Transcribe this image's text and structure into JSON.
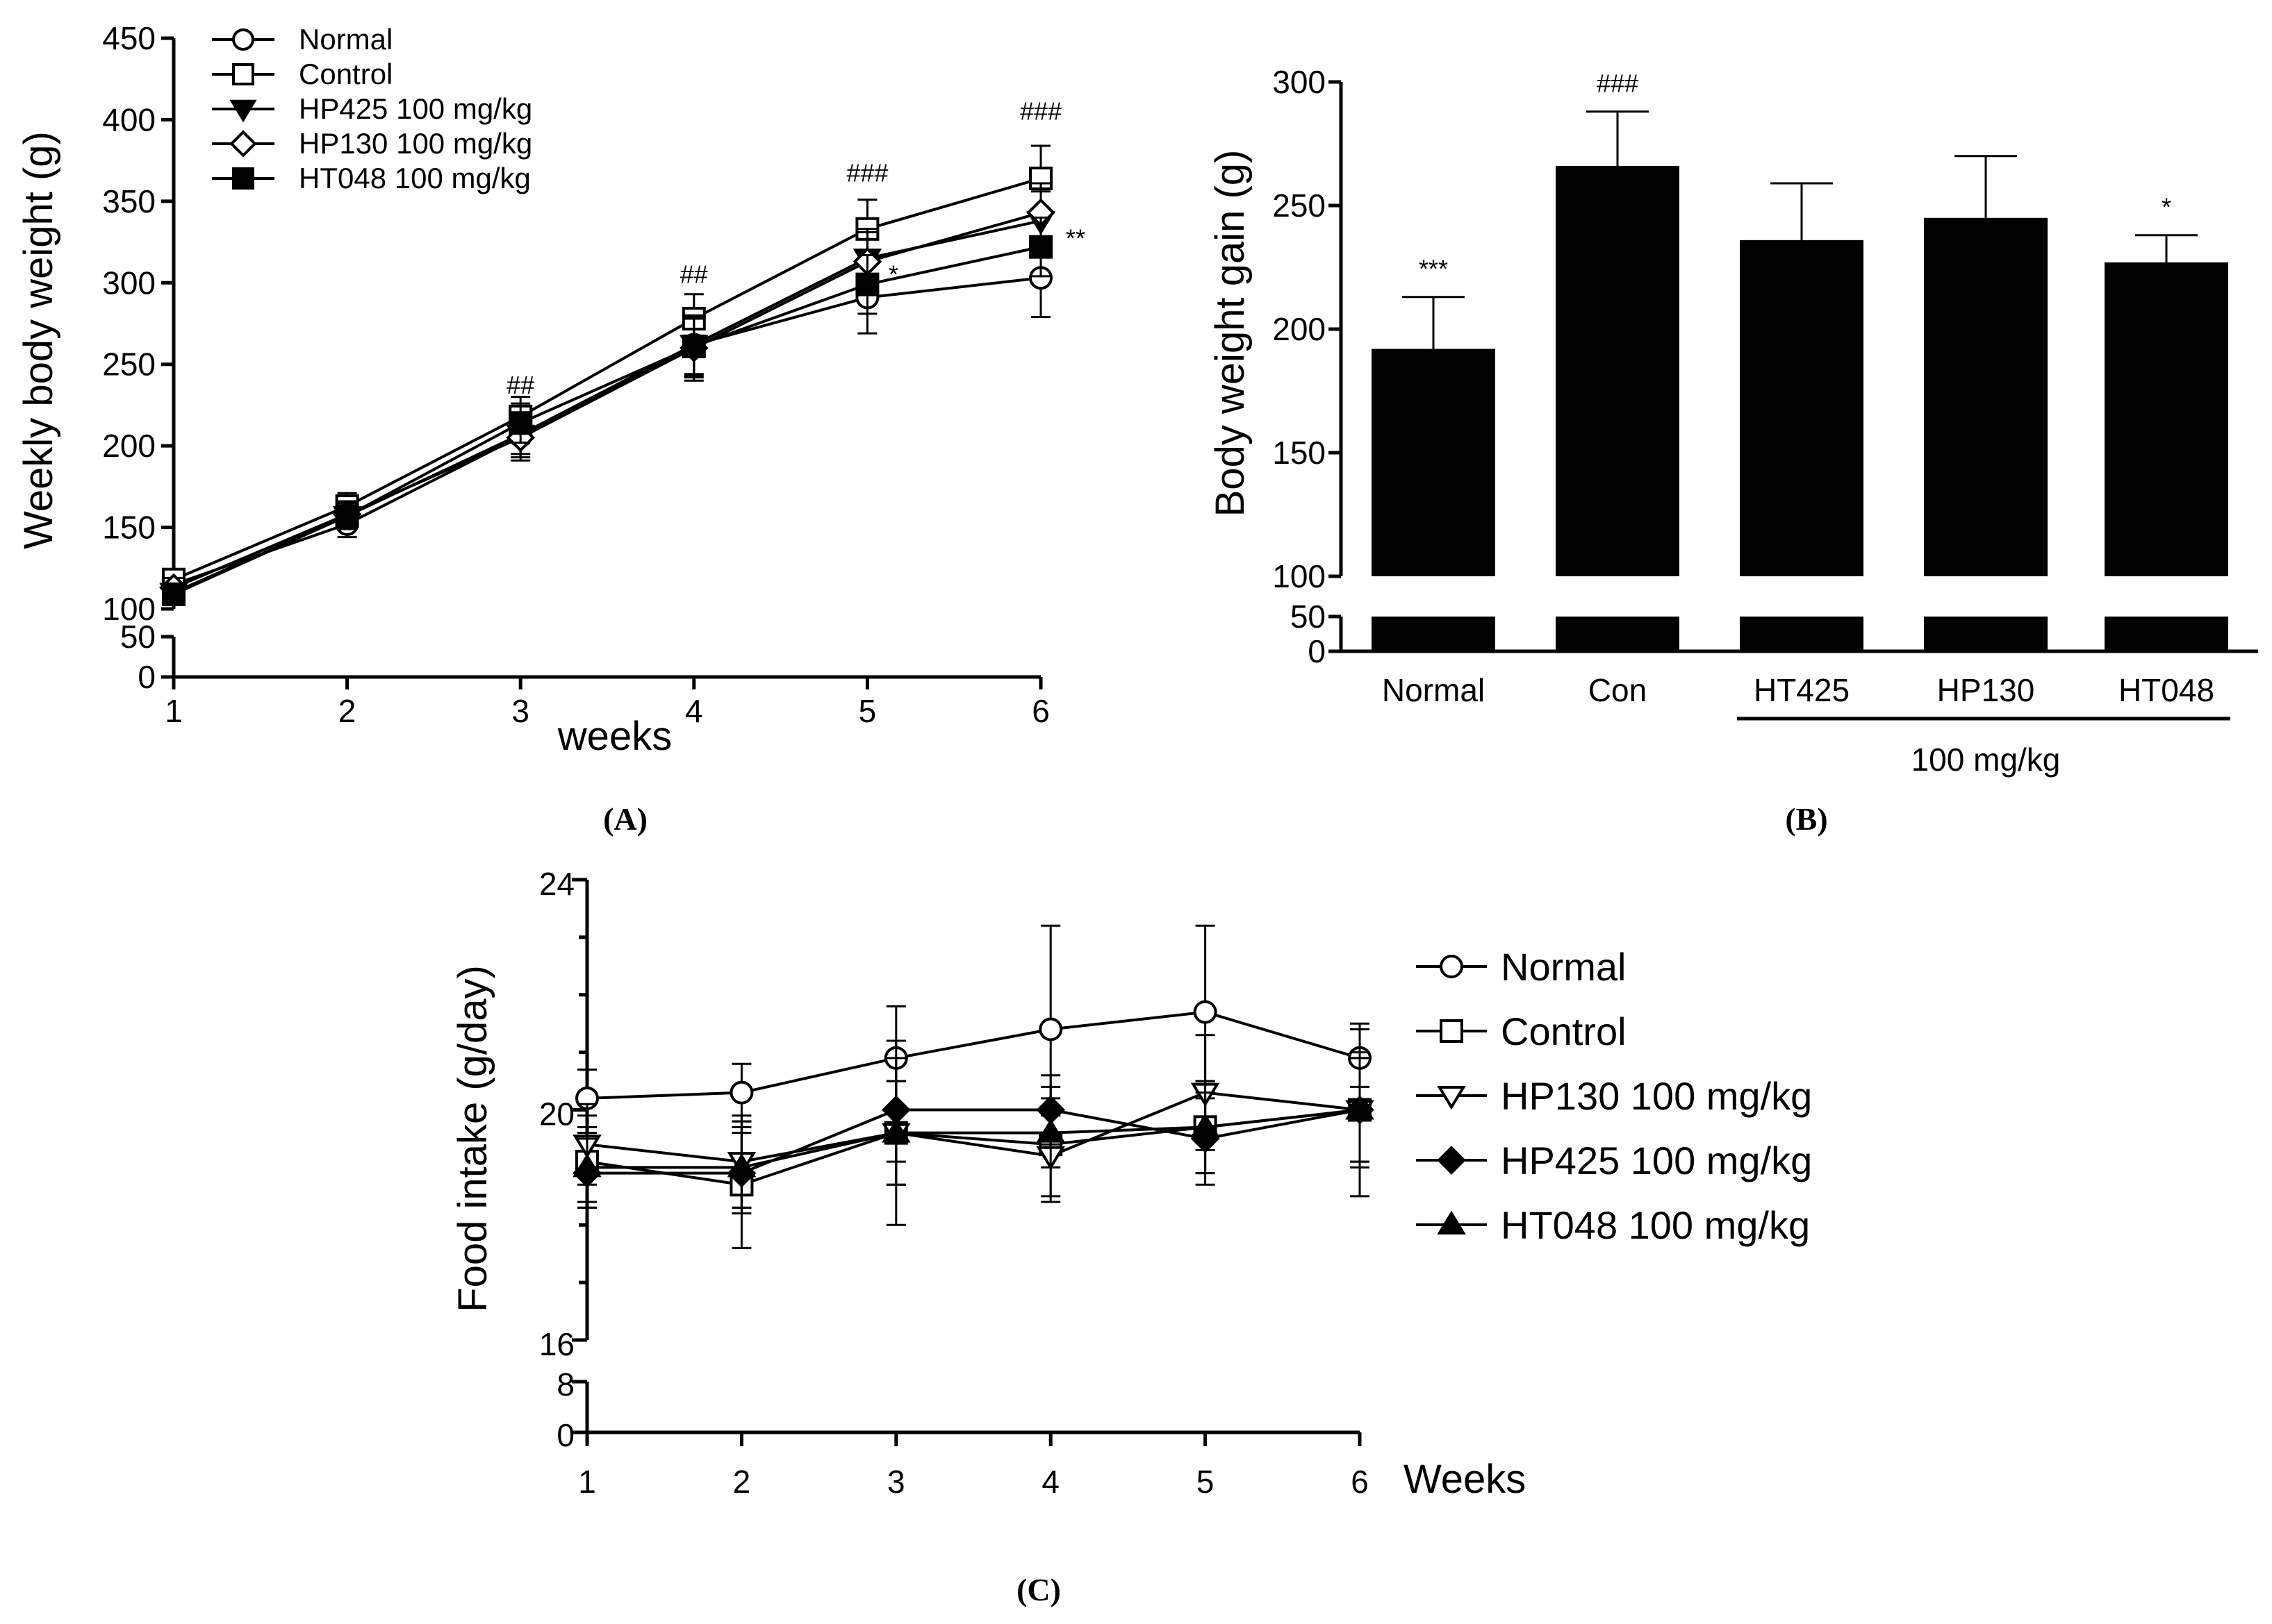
{
  "chart_data": [
    {
      "panel": "(A)",
      "type": "line",
      "ylabel": "Weekly body weight (g)",
      "xlabel": "weeks",
      "x": [
        1,
        2,
        3,
        4,
        5,
        6
      ],
      "xticks": [
        "1",
        "2",
        "3",
        "4",
        "5",
        "6"
      ],
      "yticks_upper": [
        "100",
        "150",
        "200",
        "250",
        "300",
        "350",
        "400",
        "450"
      ],
      "yticks_lower": [
        "0",
        "50"
      ],
      "ylim_upper": [
        100,
        450
      ],
      "ylim_lower": [
        0,
        50
      ],
      "series": [
        {
          "name": "Normal",
          "marker": "circle-open",
          "values": [
            115,
            152,
            206,
            262,
            291,
            303
          ],
          "err": [
            6,
            8,
            15,
            22,
            22,
            24
          ]
        },
        {
          "name": "Control",
          "marker": "square-open",
          "values": [
            118,
            163,
            218,
            278,
            333,
            364
          ],
          "err": [
            6,
            8,
            12,
            15,
            18,
            20
          ]
        },
        {
          "name": "HP425 100 mg/kg",
          "marker": "triangle-down-filled",
          "values": [
            110,
            157,
            207,
            262,
            315,
            338
          ],
          "err": [
            6,
            8,
            12,
            18,
            18,
            18
          ]
        },
        {
          "name": "HP130 100 mg/kg",
          "marker": "diamond-open",
          "values": [
            113,
            158,
            205,
            260,
            313,
            343
          ],
          "err": [
            6,
            8,
            12,
            18,
            18,
            18
          ]
        },
        {
          "name": "HT048 100 mg/kg",
          "marker": "square-filled",
          "values": [
            109,
            157,
            214,
            261,
            299,
            322
          ],
          "err": [
            6,
            8,
            12,
            18,
            18,
            18
          ]
        }
      ],
      "annotations": [
        {
          "x": 3,
          "y": 232,
          "text": "##"
        },
        {
          "x": 4,
          "y": 300,
          "text": "##"
        },
        {
          "x": 5,
          "y": 362,
          "text": "###"
        },
        {
          "x": 6,
          "y": 400,
          "text": "###"
        },
        {
          "x": 5.15,
          "y": 300,
          "text": "*"
        },
        {
          "x": 6.2,
          "y": 322,
          "text": "**"
        }
      ]
    },
    {
      "panel": "(B)",
      "type": "bar",
      "ylabel": "Body weight gain (g)",
      "categories": [
        "Normal",
        "Con",
        "HT425",
        "HP130",
        "HT048"
      ],
      "values": [
        192,
        266,
        236,
        245,
        227
      ],
      "err": [
        21,
        22,
        23,
        25,
        11
      ],
      "sig": [
        "***",
        "###",
        "",
        "",
        "*"
      ],
      "group_label": "100 mg/kg",
      "yticks_upper": [
        "100",
        "150",
        "200",
        "250",
        "300"
      ],
      "yticks_lower": [
        "0",
        "50"
      ],
      "ylim_upper": [
        100,
        300
      ],
      "ylim_lower": [
        0,
        50
      ]
    },
    {
      "panel": "(C)",
      "type": "line",
      "ylabel": "Food intake (g/day)",
      "xlabel": "Weeks",
      "x": [
        1,
        2,
        3,
        4,
        5,
        6
      ],
      "xticks": [
        "1",
        "2",
        "3",
        "4",
        "5",
        "6"
      ],
      "yticks_upper": [
        "16",
        "20",
        "24"
      ],
      "yticks_lower": [
        "0",
        "8"
      ],
      "ylim_upper": [
        16,
        24
      ],
      "ylim_lower": [
        0,
        8
      ],
      "series": [
        {
          "name": "Normal",
          "marker": "circle-open",
          "values": [
            20.2,
            20.3,
            20.9,
            21.4,
            21.7,
            20.9
          ],
          "err": [
            0.5,
            0.5,
            0.9,
            1.8,
            1.5,
            0.5
          ]
        },
        {
          "name": "Control",
          "marker": "square-open",
          "values": [
            19.1,
            18.7,
            19.6,
            19.4,
            19.7,
            20.0
          ],
          "err": [
            0.8,
            1.1,
            1.6,
            1.0,
            0.8,
            1.5
          ]
        },
        {
          "name": "HP130 100 mg/kg",
          "marker": "triangle-down-open",
          "values": [
            19.4,
            19.1,
            19.6,
            19.2,
            20.3,
            20.0
          ],
          "err": [
            0.7,
            0.8,
            0.9,
            0.7,
            1.0,
            1.0
          ]
        },
        {
          "name": "HP425 100 mg/kg",
          "marker": "diamond-filled",
          "values": [
            18.9,
            18.9,
            20.0,
            20.0,
            19.5,
            20.0
          ],
          "err": [
            0.6,
            0.7,
            0.9,
            0.6,
            0.8,
            0.9
          ]
        },
        {
          "name": "HT048 100 mg/kg",
          "marker": "triangle-up-filled",
          "values": [
            19.0,
            19.0,
            19.6,
            19.6,
            19.7,
            20.0
          ],
          "err": [
            0.6,
            0.7,
            0.9,
            0.6,
            0.8,
            0.9
          ]
        }
      ]
    }
  ]
}
